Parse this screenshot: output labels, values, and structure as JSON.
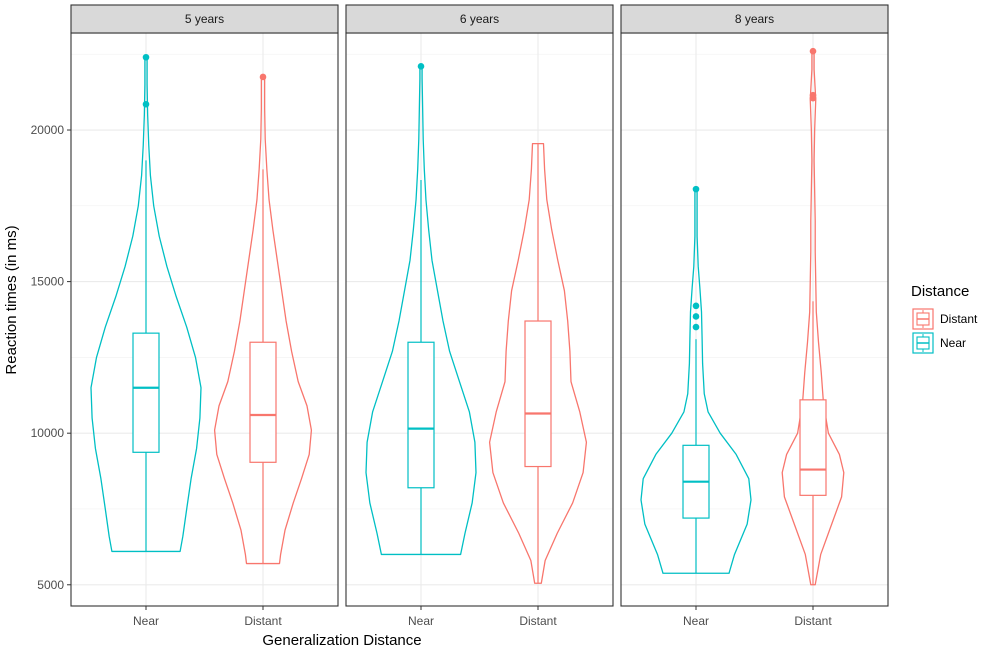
{
  "chart_data": {
    "type": "violin",
    "xlabel": "Generalization Distance",
    "ylabel": "Reaction times (in ms)",
    "ylim": [
      4300,
      23200
    ],
    "yticks": [
      5000,
      10000,
      15000,
      20000
    ],
    "ytick_labels": [
      "5000",
      "10000",
      "15000",
      "20000"
    ],
    "categories": [
      "Near",
      "Distant"
    ],
    "grid": true,
    "theme": "bw",
    "legend": {
      "title": "Distance",
      "position": "right",
      "entries": [
        {
          "name": "Distant",
          "color": "#F8766D"
        },
        {
          "name": "Near",
          "color": "#00BFC4"
        }
      ]
    },
    "colors": {
      "Near": "#00BFC4",
      "Distant": "#F8766D"
    },
    "panels": [
      {
        "label": "5 years",
        "groups": [
          {
            "category": "Near",
            "min": 6100,
            "q1": 9370,
            "median": 11500,
            "q3": 13300,
            "max": 19000,
            "outliers": [
              20850,
              22400
            ],
            "violin": [
              [
                6100,
                0.62
              ],
              [
                6600,
                0.67
              ],
              [
                7500,
                0.74
              ],
              [
                8500,
                0.82
              ],
              [
                9500,
                0.92
              ],
              [
                10500,
                0.98
              ],
              [
                11500,
                1.0
              ],
              [
                12500,
                0.9
              ],
              [
                13500,
                0.74
              ],
              [
                14500,
                0.55
              ],
              [
                15500,
                0.38
              ],
              [
                16500,
                0.24
              ],
              [
                17500,
                0.14
              ],
              [
                18500,
                0.08
              ],
              [
                19500,
                0.05
              ],
              [
                20500,
                0.03
              ],
              [
                21500,
                0.02
              ],
              [
                22400,
                0.02
              ]
            ]
          },
          {
            "category": "Distant",
            "min": 5700,
            "q1": 9040,
            "median": 10600,
            "q3": 13000,
            "max": 18700,
            "outliers": [
              21750
            ],
            "violin": [
              [
                5700,
                0.3
              ],
              [
                6000,
                0.32
              ],
              [
                6800,
                0.4
              ],
              [
                7700,
                0.55
              ],
              [
                8500,
                0.7
              ],
              [
                9300,
                0.84
              ],
              [
                10100,
                0.88
              ],
              [
                10900,
                0.8
              ],
              [
                11700,
                0.64
              ],
              [
                12700,
                0.52
              ],
              [
                13700,
                0.42
              ],
              [
                14700,
                0.34
              ],
              [
                15700,
                0.26
              ],
              [
                16700,
                0.18
              ],
              [
                17700,
                0.11
              ],
              [
                18700,
                0.07
              ],
              [
                19700,
                0.04
              ],
              [
                20700,
                0.03
              ],
              [
                21700,
                0.03
              ]
            ]
          }
        ]
      },
      {
        "label": "6 years",
        "groups": [
          {
            "category": "Near",
            "min": 6000,
            "q1": 8200,
            "median": 10150,
            "q3": 13000,
            "max": 18350,
            "outliers": [
              22100
            ],
            "violin": [
              [
                6000,
                0.72
              ],
              [
                6700,
                0.8
              ],
              [
                7700,
                0.93
              ],
              [
                8700,
                1.0
              ],
              [
                9700,
                0.98
              ],
              [
                10700,
                0.88
              ],
              [
                11700,
                0.7
              ],
              [
                12700,
                0.52
              ],
              [
                13700,
                0.4
              ],
              [
                14700,
                0.3
              ],
              [
                15700,
                0.2
              ],
              [
                16700,
                0.14
              ],
              [
                17700,
                0.09
              ],
              [
                18700,
                0.06
              ],
              [
                19700,
                0.04
              ],
              [
                20700,
                0.03
              ],
              [
                21700,
                0.02
              ],
              [
                22100,
                0.02
              ]
            ]
          },
          {
            "category": "Distant",
            "min": 5050,
            "q1": 8900,
            "median": 10650,
            "q3": 13700,
            "max": 19550,
            "outliers": [],
            "violin": [
              [
                5050,
                0.06
              ],
              [
                5800,
                0.13
              ],
              [
                6700,
                0.35
              ],
              [
                7700,
                0.63
              ],
              [
                8700,
                0.82
              ],
              [
                9700,
                0.88
              ],
              [
                10700,
                0.76
              ],
              [
                11700,
                0.6
              ],
              [
                12700,
                0.58
              ],
              [
                13700,
                0.54
              ],
              [
                14700,
                0.48
              ],
              [
                15700,
                0.36
              ],
              [
                16700,
                0.25
              ],
              [
                17700,
                0.16
              ],
              [
                18700,
                0.12
              ],
              [
                19550,
                0.1
              ]
            ]
          }
        ]
      },
      {
        "label": "8 years",
        "groups": [
          {
            "category": "Near",
            "min": 5380,
            "q1": 7200,
            "median": 8400,
            "q3": 9600,
            "max": 13100,
            "outliers": [
              13500,
              13850,
              14200,
              18050
            ],
            "violin": [
              [
                5380,
                0.6
              ],
              [
                6000,
                0.7
              ],
              [
                7000,
                0.93
              ],
              [
                7800,
                1.0
              ],
              [
                8500,
                0.96
              ],
              [
                9300,
                0.73
              ],
              [
                10000,
                0.44
              ],
              [
                10700,
                0.22
              ],
              [
                11300,
                0.15
              ],
              [
                12300,
                0.12
              ],
              [
                13200,
                0.11
              ],
              [
                14000,
                0.1
              ],
              [
                14800,
                0.07
              ],
              [
                15500,
                0.04
              ],
              [
                16500,
                0.02
              ],
              [
                17500,
                0.02
              ],
              [
                18050,
                0.02
              ]
            ]
          },
          {
            "category": "Distant",
            "min": 5000,
            "q1": 7950,
            "median": 8800,
            "q3": 11100,
            "max": 14350,
            "outliers": [
              21050,
              21150,
              22600
            ],
            "violin": [
              [
                5000,
                0.04
              ],
              [
                6000,
                0.14
              ],
              [
                7000,
                0.34
              ],
              [
                7900,
                0.52
              ],
              [
                8700,
                0.56
              ],
              [
                9300,
                0.48
              ],
              [
                10000,
                0.28
              ],
              [
                11000,
                0.19
              ],
              [
                12000,
                0.15
              ],
              [
                13000,
                0.1
              ],
              [
                14000,
                0.06
              ],
              [
                15000,
                0.05
              ],
              [
                16000,
                0.04
              ],
              [
                17000,
                0.04
              ],
              [
                18000,
                0.03
              ],
              [
                19000,
                0.02
              ],
              [
                20000,
                0.03
              ],
              [
                21000,
                0.05
              ],
              [
                22000,
                0.02
              ],
              [
                22600,
                0.02
              ]
            ]
          }
        ]
      }
    ]
  }
}
